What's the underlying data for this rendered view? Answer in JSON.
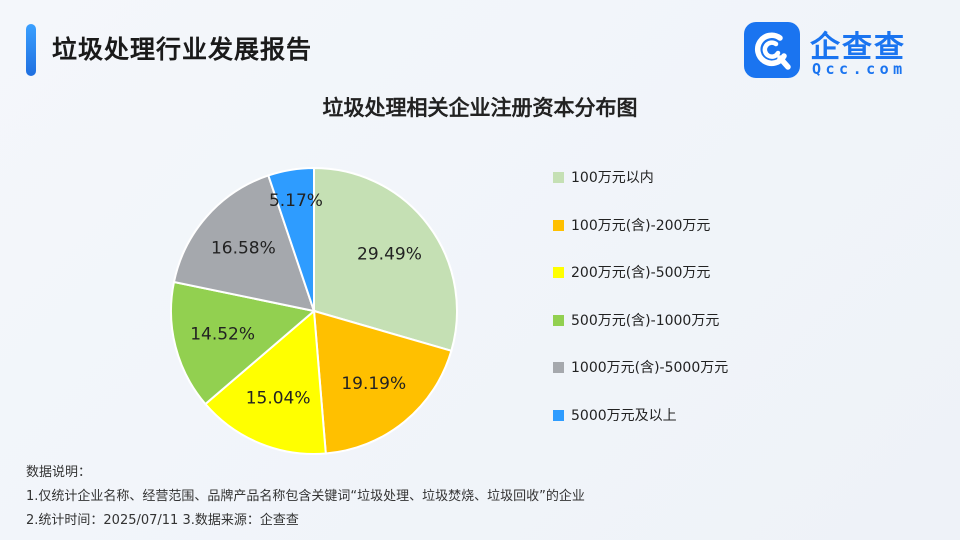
{
  "header": {
    "title": "垃圾处理行业发展报告",
    "accent_color": "#1f6fe0"
  },
  "logo": {
    "icon": "qcc-logo-icon",
    "name": "企查查",
    "sub": "Qcc.com",
    "color": "#1a74f0"
  },
  "chart_data": {
    "type": "pie",
    "title": "垃圾处理相关企业注册资本分布图",
    "legend_position": "right",
    "slices": [
      {
        "label": "100万元以内",
        "value": 29.49,
        "display": "29.49%",
        "color": "#c5e0b4"
      },
      {
        "label": "100万元(含)-200万元",
        "value": 19.19,
        "display": "19.19%",
        "color": "#ffc000"
      },
      {
        "label": "200万元(含)-500万元",
        "value": 15.04,
        "display": "15.04%",
        "color": "#ffff00"
      },
      {
        "label": "500万元(含)-1000万元",
        "value": 14.52,
        "display": "14.52%",
        "color": "#92d050"
      },
      {
        "label": "1000万元(含)-5000万元",
        "value": 16.58,
        "display": "16.58%",
        "color": "#a5a8ad"
      },
      {
        "label": "5000万元及以上",
        "value": 5.17,
        "display": "5.17%",
        "color": "#2e9cff"
      }
    ]
  },
  "notes": {
    "heading": "数据说明：",
    "line1": "1.仅统计企业名称、经营范围、品牌产品名称包含关键词“垃圾处理、垃圾焚烧、垃圾回收”的企业",
    "line2": "2.统计时间：2025/07/11    3.数据来源：企查查"
  }
}
